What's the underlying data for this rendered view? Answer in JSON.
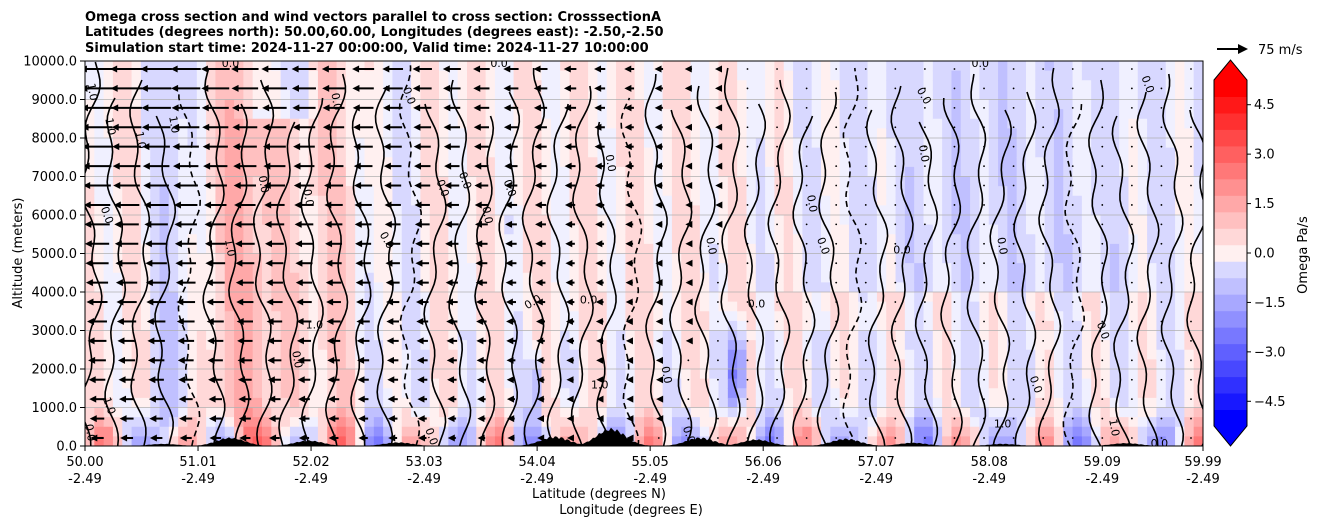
{
  "chart_data": {
    "type": "heatmap",
    "title_lines": [
      "Omega cross section and wind vectors parallel to cross section: CrosssectionA",
      "Latitudes (degrees north): 50.00,60.00, Longitudes (degrees east): -2.50,-2.50",
      "Simulation start time: 2024-11-27 00:00:00, Valid time: 2024-11-27 10:00:00"
    ],
    "ylabel": "Altitude (meters)",
    "xlabel_lines": [
      "Latitude (degrees N)",
      "Longitude (degrees E)"
    ],
    "xlim": [
      50.0,
      59.99
    ],
    "ylim": [
      0,
      10000
    ],
    "x_ticks": [
      {
        "lat": "50.00",
        "lon": "-2.49",
        "value": 50.0
      },
      {
        "lat": "51.01",
        "lon": "-2.49",
        "value": 51.01
      },
      {
        "lat": "52.02",
        "lon": "-2.49",
        "value": 52.02
      },
      {
        "lat": "53.03",
        "lon": "-2.49",
        "value": 53.03
      },
      {
        "lat": "54.04",
        "lon": "-2.49",
        "value": 54.04
      },
      {
        "lat": "55.05",
        "lon": "-2.49",
        "value": 55.05
      },
      {
        "lat": "56.06",
        "lon": "-2.49",
        "value": 56.06
      },
      {
        "lat": "57.07",
        "lon": "-2.49",
        "value": 57.07
      },
      {
        "lat": "58.08",
        "lon": "-2.49",
        "value": 58.08
      },
      {
        "lat": "59.09",
        "lon": "-2.49",
        "value": 59.09
      },
      {
        "lat": "59.99",
        "lon": "-2.49",
        "value": 59.99
      }
    ],
    "y_ticks": [
      {
        "label": "0.0",
        "value": 0
      },
      {
        "label": "1000.0",
        "value": 1000
      },
      {
        "label": "2000.0",
        "value": 2000
      },
      {
        "label": "3000.0",
        "value": 3000
      },
      {
        "label": "4000.0",
        "value": 4000
      },
      {
        "label": "5000.0",
        "value": 5000
      },
      {
        "label": "6000.0",
        "value": 6000
      },
      {
        "label": "7000.0",
        "value": 7000
      },
      {
        "label": "8000.0",
        "value": 8000
      },
      {
        "label": "9000.0",
        "value": 9000
      },
      {
        "label": "10000.0",
        "value": 10000
      }
    ],
    "grid": "horizontal",
    "colorbar": {
      "label": "Omega Pa/s",
      "range": [
        -5.25,
        5.25
      ],
      "levels": 21,
      "extend": "both",
      "colors_negative": "#0000ff",
      "colors_positive": "#ff0000",
      "tick_labels": [
        {
          "label": "4.5",
          "value": 4.5
        },
        {
          "label": "3.0",
          "value": 3.0
        },
        {
          "label": "1.5",
          "value": 1.5
        },
        {
          "label": "0.0",
          "value": 0.0
        },
        {
          "label": "−1.5",
          "value": -1.5
        },
        {
          "label": "−3.0",
          "value": -3.0
        },
        {
          "label": "−4.5",
          "value": -4.5
        }
      ]
    },
    "vector_key_label": "75 m/s",
    "contour_labels": [
      {
        "text": "0.0",
        "lat": 51.3,
        "alt": 9950,
        "rot": 0
      },
      {
        "text": "0.0",
        "lat": 53.7,
        "alt": 9950,
        "rot": 0
      },
      {
        "text": "0.0",
        "lat": 58.0,
        "alt": 9950,
        "rot": 0
      },
      {
        "text": "1.0",
        "lat": 50.07,
        "alt": 9200,
        "rot": 80
      },
      {
        "text": "1.0",
        "lat": 50.23,
        "alt": 8300,
        "rot": 80
      },
      {
        "text": "1.0",
        "lat": 50.5,
        "alt": 7950,
        "rot": 80
      },
      {
        "text": "1.0",
        "lat": 50.8,
        "alt": 8350,
        "rot": 80
      },
      {
        "text": "0.0",
        "lat": 52.25,
        "alt": 8950,
        "rot": 80
      },
      {
        "text": "0.0",
        "lat": 52.9,
        "alt": 9100,
        "rot": 70
      },
      {
        "text": "0.0",
        "lat": 57.5,
        "alt": 9100,
        "rot": 60
      },
      {
        "text": "0.0",
        "lat": 59.5,
        "alt": 9400,
        "rot": 70
      },
      {
        "text": "0.0",
        "lat": 50.2,
        "alt": 6000,
        "rot": 70
      },
      {
        "text": "0.0",
        "lat": 51.6,
        "alt": 6800,
        "rot": 80
      },
      {
        "text": "0.0",
        "lat": 52.0,
        "alt": 6450,
        "rot": 80
      },
      {
        "text": "0.0",
        "lat": 53.2,
        "alt": 6700,
        "rot": 70
      },
      {
        "text": "0.0",
        "lat": 53.4,
        "alt": 6900,
        "rot": 70
      },
      {
        "text": "0.0",
        "lat": 53.6,
        "alt": 6000,
        "rot": 80
      },
      {
        "text": "0.0",
        "lat": 53.8,
        "alt": 6700,
        "rot": 70
      },
      {
        "text": "0.0",
        "lat": 54.7,
        "alt": 7350,
        "rot": 80
      },
      {
        "text": "0.0",
        "lat": 57.5,
        "alt": 7600,
        "rot": 80
      },
      {
        "text": "0.0",
        "lat": 56.5,
        "alt": 6300,
        "rot": 80
      },
      {
        "text": "0.0",
        "lat": 55.6,
        "alt": 5200,
        "rot": 80
      },
      {
        "text": "0.0",
        "lat": 56.6,
        "alt": 5200,
        "rot": 70
      },
      {
        "text": "0.0",
        "lat": 58.2,
        "alt": 5200,
        "rot": 80
      },
      {
        "text": "0.0",
        "lat": 57.3,
        "alt": 5100,
        "rot": 0
      },
      {
        "text": "0.0",
        "lat": 52.7,
        "alt": 5350,
        "rot": 60
      },
      {
        "text": "1.0",
        "lat": 51.3,
        "alt": 5150,
        "rot": 80
      },
      {
        "text": "0.0",
        "lat": 54.5,
        "alt": 3800,
        "rot": 0
      },
      {
        "text": "0.0",
        "lat": 56.0,
        "alt": 3700,
        "rot": 0
      },
      {
        "text": "0.0",
        "lat": 54.0,
        "alt": 3750,
        "rot": -30
      },
      {
        "text": "1.0",
        "lat": 52.05,
        "alt": 3150,
        "rot": 0
      },
      {
        "text": "0.0",
        "lat": 59.1,
        "alt": 3000,
        "rot": 70
      },
      {
        "text": "0.0",
        "lat": 51.9,
        "alt": 2250,
        "rot": 80
      },
      {
        "text": "0.0",
        "lat": 55.2,
        "alt": 1850,
        "rot": 80
      },
      {
        "text": "1.0",
        "lat": 54.6,
        "alt": 1600,
        "rot": 0
      },
      {
        "text": "0.0",
        "lat": 58.5,
        "alt": 1600,
        "rot": 70
      },
      {
        "text": "1.0",
        "lat": 50.22,
        "alt": 1050,
        "rot": 70
      },
      {
        "text": "1.0",
        "lat": 58.2,
        "alt": 580,
        "rot": 0
      },
      {
        "text": "1.0",
        "lat": 59.2,
        "alt": 480,
        "rot": 80
      },
      {
        "text": "0.0",
        "lat": 59.6,
        "alt": 80,
        "rot": 0
      },
      {
        "text": "0.0",
        "lat": 50.05,
        "alt": 350,
        "rot": 80
      },
      {
        "text": "0.0",
        "lat": 53.1,
        "alt": 250,
        "rot": 70
      },
      {
        "text": "0.0",
        "lat": 55.4,
        "alt": 300,
        "rot": 70
      }
    ],
    "terrain_peaks_alt": [
      {
        "lat": 50.7,
        "alt": 60
      },
      {
        "lat": 51.3,
        "alt": 230
      },
      {
        "lat": 52.0,
        "alt": 150
      },
      {
        "lat": 52.8,
        "alt": 100
      },
      {
        "lat": 54.2,
        "alt": 260
      },
      {
        "lat": 54.7,
        "alt": 480
      },
      {
        "lat": 55.5,
        "alt": 230
      },
      {
        "lat": 56.0,
        "alt": 180
      },
      {
        "lat": 56.8,
        "alt": 200
      },
      {
        "lat": 57.4,
        "alt": 90
      },
      {
        "lat": 58.2,
        "alt": 60
      },
      {
        "lat": 59.3,
        "alt": 80
      }
    ]
  }
}
